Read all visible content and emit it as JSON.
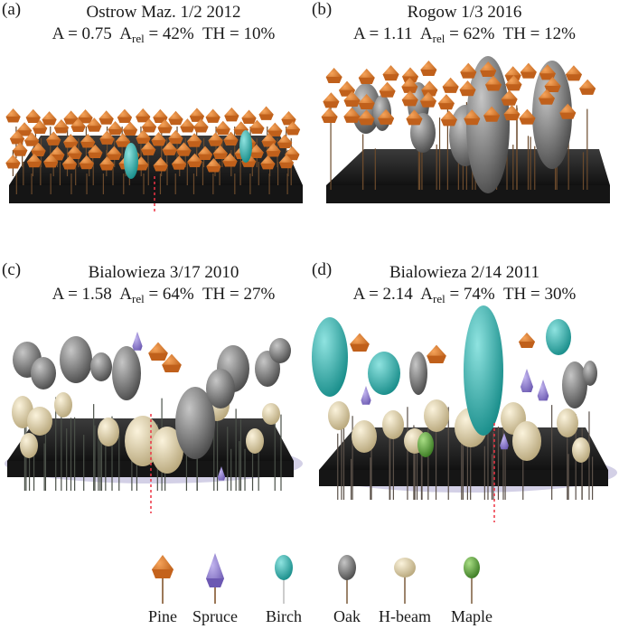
{
  "panels": [
    {
      "id": "a",
      "label": "(a)",
      "title": "Ostrow Maz. 1/2  2012",
      "A": "A = 0.75",
      "Arel_prefix": "A",
      "Arel_sub": "rel",
      "Arel_value": "= 42%",
      "TH": "TH = 10%"
    },
    {
      "id": "b",
      "label": "(b)",
      "title": "Rogow 1/3 2016",
      "A": "A = 1.11",
      "Arel_prefix": "A",
      "Arel_sub": "rel",
      "Arel_value": "= 62%",
      "TH": "TH = 12%"
    },
    {
      "id": "c",
      "label": "(c)",
      "title": "Bialowieza 3/17 2010",
      "A": "A = 1.58",
      "Arel_prefix": "A",
      "Arel_sub": "rel",
      "Arel_value": "= 64%",
      "TH": "TH = 27%"
    },
    {
      "id": "d",
      "label": "(d)",
      "title": "Bialowieza 2/14 2011",
      "A": "A = 2.14",
      "Arel_prefix": "A",
      "Arel_sub": "rel",
      "Arel_value": "= 74%",
      "TH": "TH = 30%"
    }
  ],
  "legend": [
    {
      "name": "Pine",
      "shape": "pine-icon",
      "color": "#d9772a"
    },
    {
      "name": "Spruce",
      "shape": "spruce-icon",
      "color": "#8f7ed1"
    },
    {
      "name": "Birch",
      "shape": "birch-icon",
      "color": "#2fb3b0"
    },
    {
      "name": "Oak",
      "shape": "oak-icon",
      "color": "#808080"
    },
    {
      "name": "H-beam",
      "shape": "hbeam-icon",
      "color": "#d8c9a0"
    },
    {
      "name": "Maple",
      "shape": "maple-icon",
      "color": "#5aa03a"
    }
  ],
  "colors": {
    "pine": "#d9772a",
    "spruce": "#8f7ed1",
    "birch": "#2fb3b0",
    "oak": "#808080",
    "hbeam": "#d8c9a0",
    "maple": "#5aa03a",
    "ground": "#2a2a2a"
  }
}
